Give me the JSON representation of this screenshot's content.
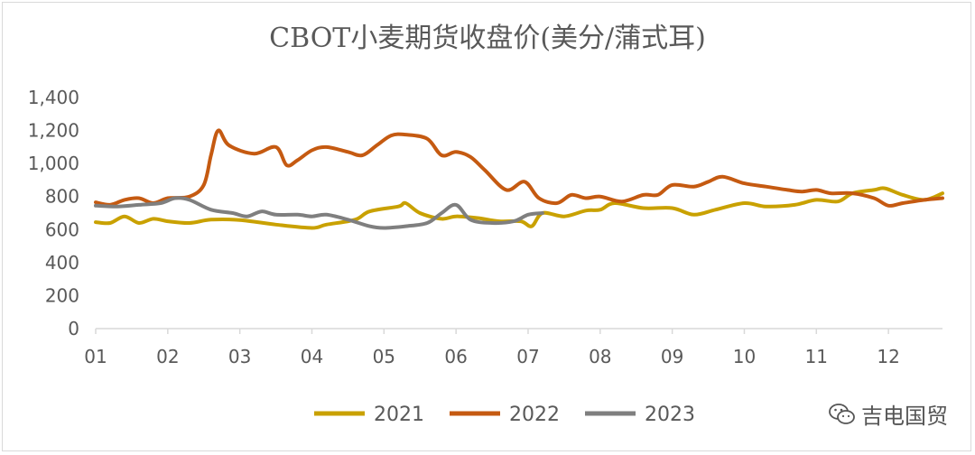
{
  "chart_data": {
    "type": "line",
    "title": "CBOT小麦期货收盘价(美分/蒲式耳)",
    "xlabel": "",
    "ylabel": "",
    "x_ticks": [
      "01",
      "02",
      "03",
      "04",
      "05",
      "06",
      "07",
      "08",
      "09",
      "10",
      "11",
      "12"
    ],
    "ylim": [
      0,
      1400
    ],
    "y_ticks": [
      0,
      200,
      400,
      600,
      800,
      1000,
      1200,
      1400
    ],
    "y_tick_labels": [
      "0",
      "200",
      "400",
      "600",
      "800",
      "1,000",
      "1,200",
      "1,400"
    ],
    "grid": false,
    "legend_position": "bottom",
    "series": [
      {
        "name": "2021",
        "color": "#C9A100",
        "points": [
          [
            0.0,
            645
          ],
          [
            0.2,
            640
          ],
          [
            0.4,
            680
          ],
          [
            0.6,
            640
          ],
          [
            0.8,
            665
          ],
          [
            1.0,
            650
          ],
          [
            1.3,
            640
          ],
          [
            1.6,
            660
          ],
          [
            2.0,
            658
          ],
          [
            2.5,
            630
          ],
          [
            3.0,
            610
          ],
          [
            3.2,
            630
          ],
          [
            3.6,
            660
          ],
          [
            3.8,
            710
          ],
          [
            4.2,
            740
          ],
          [
            4.3,
            760
          ],
          [
            4.5,
            700
          ],
          [
            4.8,
            665
          ],
          [
            5.0,
            680
          ],
          [
            5.3,
            670
          ],
          [
            5.6,
            650
          ],
          [
            5.9,
            650
          ],
          [
            6.05,
            620
          ],
          [
            6.2,
            700
          ],
          [
            6.5,
            680
          ],
          [
            6.8,
            715
          ],
          [
            7.0,
            720
          ],
          [
            7.2,
            760
          ],
          [
            7.6,
            730
          ],
          [
            8.0,
            730
          ],
          [
            8.3,
            690
          ],
          [
            8.6,
            720
          ],
          [
            9.0,
            760
          ],
          [
            9.3,
            740
          ],
          [
            9.7,
            750
          ],
          [
            10.0,
            780
          ],
          [
            10.3,
            770
          ],
          [
            10.5,
            820
          ],
          [
            10.8,
            840
          ],
          [
            10.95,
            850
          ],
          [
            11.2,
            810
          ],
          [
            11.5,
            780
          ],
          [
            11.75,
            820
          ]
        ]
      },
      {
        "name": "2022",
        "color": "#C55A11",
        "points": [
          [
            0.0,
            765
          ],
          [
            0.2,
            750
          ],
          [
            0.4,
            780
          ],
          [
            0.6,
            790
          ],
          [
            0.8,
            760
          ],
          [
            1.0,
            790
          ],
          [
            1.3,
            800
          ],
          [
            1.5,
            870
          ],
          [
            1.6,
            1050
          ],
          [
            1.7,
            1200
          ],
          [
            1.85,
            1110
          ],
          [
            2.2,
            1060
          ],
          [
            2.5,
            1100
          ],
          [
            2.65,
            990
          ],
          [
            2.8,
            1020
          ],
          [
            3.0,
            1080
          ],
          [
            3.2,
            1100
          ],
          [
            3.5,
            1070
          ],
          [
            3.7,
            1050
          ],
          [
            3.9,
            1110
          ],
          [
            4.1,
            1170
          ],
          [
            4.3,
            1175
          ],
          [
            4.6,
            1150
          ],
          [
            4.8,
            1050
          ],
          [
            5.0,
            1070
          ],
          [
            5.2,
            1040
          ],
          [
            5.4,
            960
          ],
          [
            5.7,
            840
          ],
          [
            5.95,
            890
          ],
          [
            6.15,
            790
          ],
          [
            6.4,
            760
          ],
          [
            6.6,
            810
          ],
          [
            6.8,
            790
          ],
          [
            7.0,
            800
          ],
          [
            7.3,
            770
          ],
          [
            7.6,
            810
          ],
          [
            7.8,
            810
          ],
          [
            8.0,
            870
          ],
          [
            8.3,
            860
          ],
          [
            8.5,
            890
          ],
          [
            8.7,
            920
          ],
          [
            9.0,
            880
          ],
          [
            9.3,
            860
          ],
          [
            9.6,
            840
          ],
          [
            9.8,
            830
          ],
          [
            10.0,
            840
          ],
          [
            10.2,
            820
          ],
          [
            10.5,
            820
          ],
          [
            10.8,
            790
          ],
          [
            11.0,
            745
          ],
          [
            11.2,
            760
          ],
          [
            11.5,
            780
          ],
          [
            11.75,
            790
          ]
        ]
      },
      {
        "name": "2023",
        "color": "#7F7F7F",
        "points": [
          [
            0.0,
            745
          ],
          [
            0.3,
            740
          ],
          [
            0.6,
            750
          ],
          [
            0.9,
            760
          ],
          [
            1.1,
            790
          ],
          [
            1.3,
            780
          ],
          [
            1.6,
            720
          ],
          [
            1.9,
            700
          ],
          [
            2.1,
            680
          ],
          [
            2.3,
            710
          ],
          [
            2.5,
            690
          ],
          [
            2.8,
            690
          ],
          [
            3.0,
            680
          ],
          [
            3.2,
            690
          ],
          [
            3.5,
            660
          ],
          [
            3.8,
            620
          ],
          [
            4.0,
            610
          ],
          [
            4.3,
            620
          ],
          [
            4.6,
            640
          ],
          [
            4.8,
            700
          ],
          [
            5.0,
            750
          ],
          [
            5.2,
            660
          ],
          [
            5.5,
            640
          ],
          [
            5.8,
            650
          ],
          [
            6.0,
            690
          ],
          [
            6.2,
            700
          ]
        ]
      }
    ]
  },
  "watermark": {
    "icon": "wechat-icon",
    "text": "吉电国贸"
  }
}
